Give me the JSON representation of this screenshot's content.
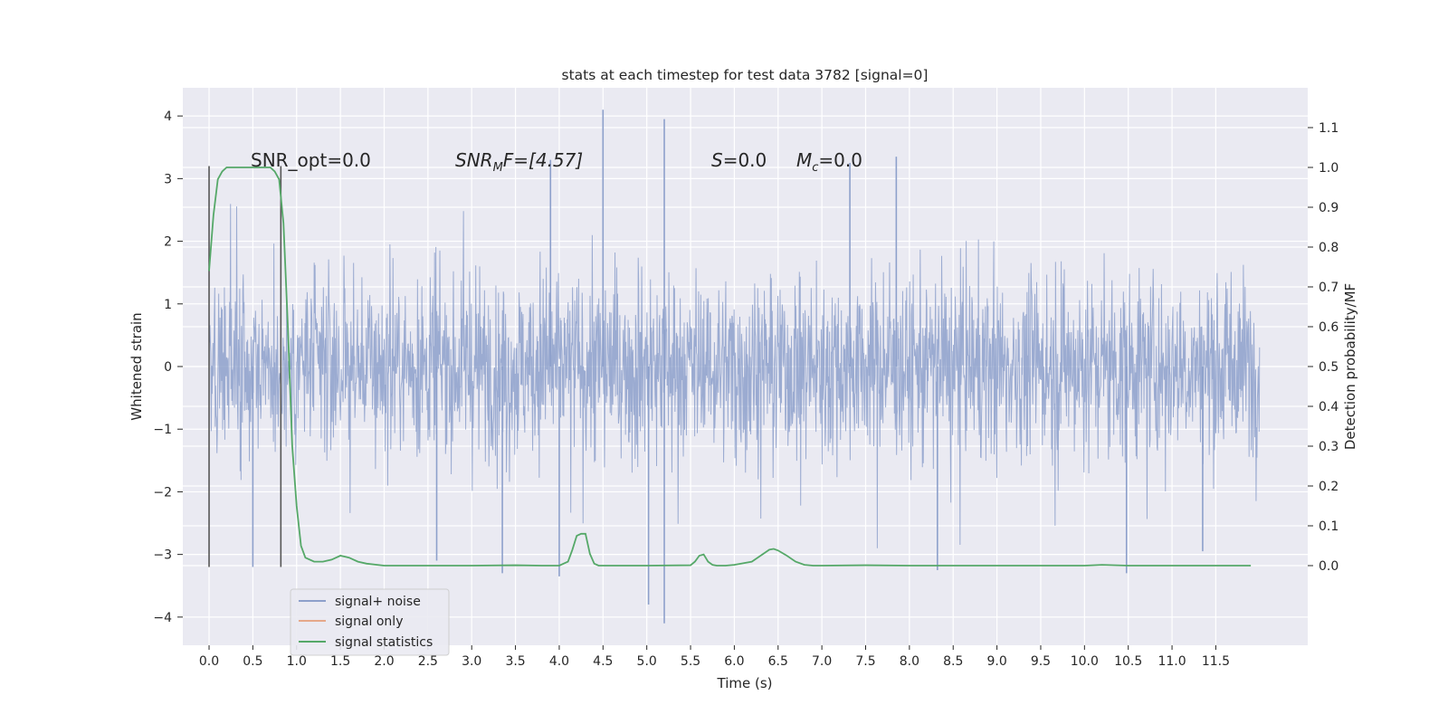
{
  "chart_data": {
    "type": "line",
    "title": "stats at each timestep for test data 3782 [signal=0]",
    "xlabel": "Time (s)",
    "ylabel": "Whitened strain",
    "ylabel_right": "Detection probability/MF",
    "xlim": [
      -0.3,
      12.55
    ],
    "ylim": [
      -4.45,
      4.45
    ],
    "ylim_right": [
      -0.2,
      1.2
    ],
    "x_ticks": [
      0.0,
      0.5,
      1.0,
      1.5,
      2.0,
      2.5,
      3.0,
      3.5,
      4.0,
      4.5,
      5.0,
      5.5,
      6.0,
      6.5,
      7.0,
      7.5,
      8.0,
      8.5,
      9.0,
      9.5,
      10.0,
      10.5,
      11.0,
      11.5
    ],
    "x_tick_labels": [
      "0.0",
      "0.5",
      "1.0",
      "1.5",
      "2.0",
      "2.5",
      "3.0",
      "3.5",
      "4.0",
      "4.5",
      "5.0",
      "5.5",
      "6.0",
      "6.5",
      "7.0",
      "7.5",
      "8.0",
      "8.5",
      "9.0",
      "9.5",
      "10.0",
      "10.5",
      "11.0",
      "11.5"
    ],
    "y_ticks": [
      4,
      3,
      2,
      1,
      0,
      -1,
      -2,
      -3,
      -4
    ],
    "y_tick_labels": [
      "4",
      "3",
      "2",
      "1",
      "0",
      "−1",
      "−2",
      "−3",
      "−4"
    ],
    "y_ticks_right": [
      1.1,
      1.0,
      0.9,
      0.8,
      0.7,
      0.6,
      0.5,
      0.4,
      0.3,
      0.2,
      0.1,
      0.0
    ],
    "y_tick_labels_right": [
      "1.1",
      "1.0",
      "0.9",
      "0.8",
      "0.7",
      "0.6",
      "0.5",
      "0.4",
      "0.3",
      "0.2",
      "0.1",
      "0.0"
    ],
    "grid": true,
    "legend_position": "lower-left",
    "series": [
      {
        "name": "signal+ noise",
        "color": "#8da0cb",
        "axis": "left",
        "description_values": "whitened strain noise trace 0.0–12.0 s, bulk within ±1.3, extremes to +4.1 / −4.1",
        "x_range": [
          0.0,
          12.0
        ],
        "spikes": [
          {
            "x": 4.5,
            "y": 4.1
          },
          {
            "x": 5.2,
            "y": 3.95
          },
          {
            "x": 7.85,
            "y": 3.35
          },
          {
            "x": 3.9,
            "y": 3.3
          },
          {
            "x": 7.32,
            "y": 3.25
          },
          {
            "x": 5.2,
            "y": -4.1
          },
          {
            "x": 5.02,
            "y": -3.8
          },
          {
            "x": 4.0,
            "y": -3.35
          },
          {
            "x": 3.35,
            "y": -3.3
          },
          {
            "x": 10.48,
            "y": -3.3
          },
          {
            "x": 0.5,
            "y": -3.2
          },
          {
            "x": 8.32,
            "y": -3.25
          },
          {
            "x": 11.35,
            "y": -2.95
          },
          {
            "x": 2.6,
            "y": -3.1
          }
        ]
      },
      {
        "name": "signal only",
        "color": "#e5a88a",
        "axis": "left",
        "values": []
      },
      {
        "name": "signal statistics",
        "color": "#55a868",
        "axis": "right",
        "x": [
          0.0,
          0.05,
          0.1,
          0.15,
          0.2,
          0.3,
          0.4,
          0.5,
          0.6,
          0.7,
          0.75,
          0.8,
          0.85,
          0.9,
          0.95,
          1.0,
          1.05,
          1.1,
          1.2,
          1.3,
          1.4,
          1.5,
          1.6,
          1.7,
          1.8,
          2.0,
          2.5,
          3.0,
          3.5,
          3.8,
          4.0,
          4.1,
          4.15,
          4.2,
          4.25,
          4.3,
          4.35,
          4.4,
          4.45,
          4.5,
          5.0,
          5.5,
          5.55,
          5.6,
          5.65,
          5.7,
          5.75,
          5.8,
          5.9,
          6.0,
          6.2,
          6.3,
          6.4,
          6.45,
          6.5,
          6.6,
          6.7,
          6.8,
          6.9,
          7.0,
          7.5,
          8.0,
          9.0,
          10.0,
          10.2,
          10.5,
          11.0,
          11.5,
          11.9
        ],
        "values": [
          0.74,
          0.88,
          0.97,
          0.99,
          1.0,
          1.0,
          1.0,
          1.0,
          1.0,
          1.0,
          0.99,
          0.97,
          0.86,
          0.6,
          0.3,
          0.15,
          0.05,
          0.02,
          0.01,
          0.01,
          0.015,
          0.025,
          0.02,
          0.01,
          0.005,
          0.0,
          0.0,
          0.0,
          0.001,
          0.0,
          0.0,
          0.01,
          0.04,
          0.075,
          0.08,
          0.08,
          0.03,
          0.005,
          0.0,
          0.0,
          0.0,
          0.001,
          0.01,
          0.025,
          0.028,
          0.01,
          0.002,
          0.0,
          0.0,
          0.002,
          0.01,
          0.025,
          0.04,
          0.042,
          0.038,
          0.025,
          0.01,
          0.002,
          0.0,
          0.0,
          0.001,
          0.0,
          0.0,
          0.0,
          0.002,
          0.0,
          0.0,
          0.0,
          0.0
        ]
      }
    ],
    "vertical_markers": [
      {
        "x": 0.0,
        "ymin": -3.2,
        "ymax": 3.2,
        "color": "#555555"
      },
      {
        "x": 0.82,
        "ymin": -3.2,
        "ymax": 3.2,
        "color": "#555555"
      }
    ],
    "annotations": [
      {
        "text": "SNR_opt=0.0",
        "x": 0.2,
        "y": 3.2,
        "italic": false
      },
      {
        "text_main": "SNR",
        "text_sub": "M",
        "text_rest": "F=[4.57]",
        "x": 2.6,
        "y": 3.2
      },
      {
        "text_main": "S",
        "text_rest": "=0.0",
        "x": 5.6,
        "y": 3.2
      },
      {
        "text_main": "M",
        "text_sub": "c",
        "text_rest": "=0.0",
        "x": 6.6,
        "y": 3.2
      }
    ],
    "legend": [
      "signal+ noise",
      "signal only",
      "signal statistics"
    ]
  }
}
